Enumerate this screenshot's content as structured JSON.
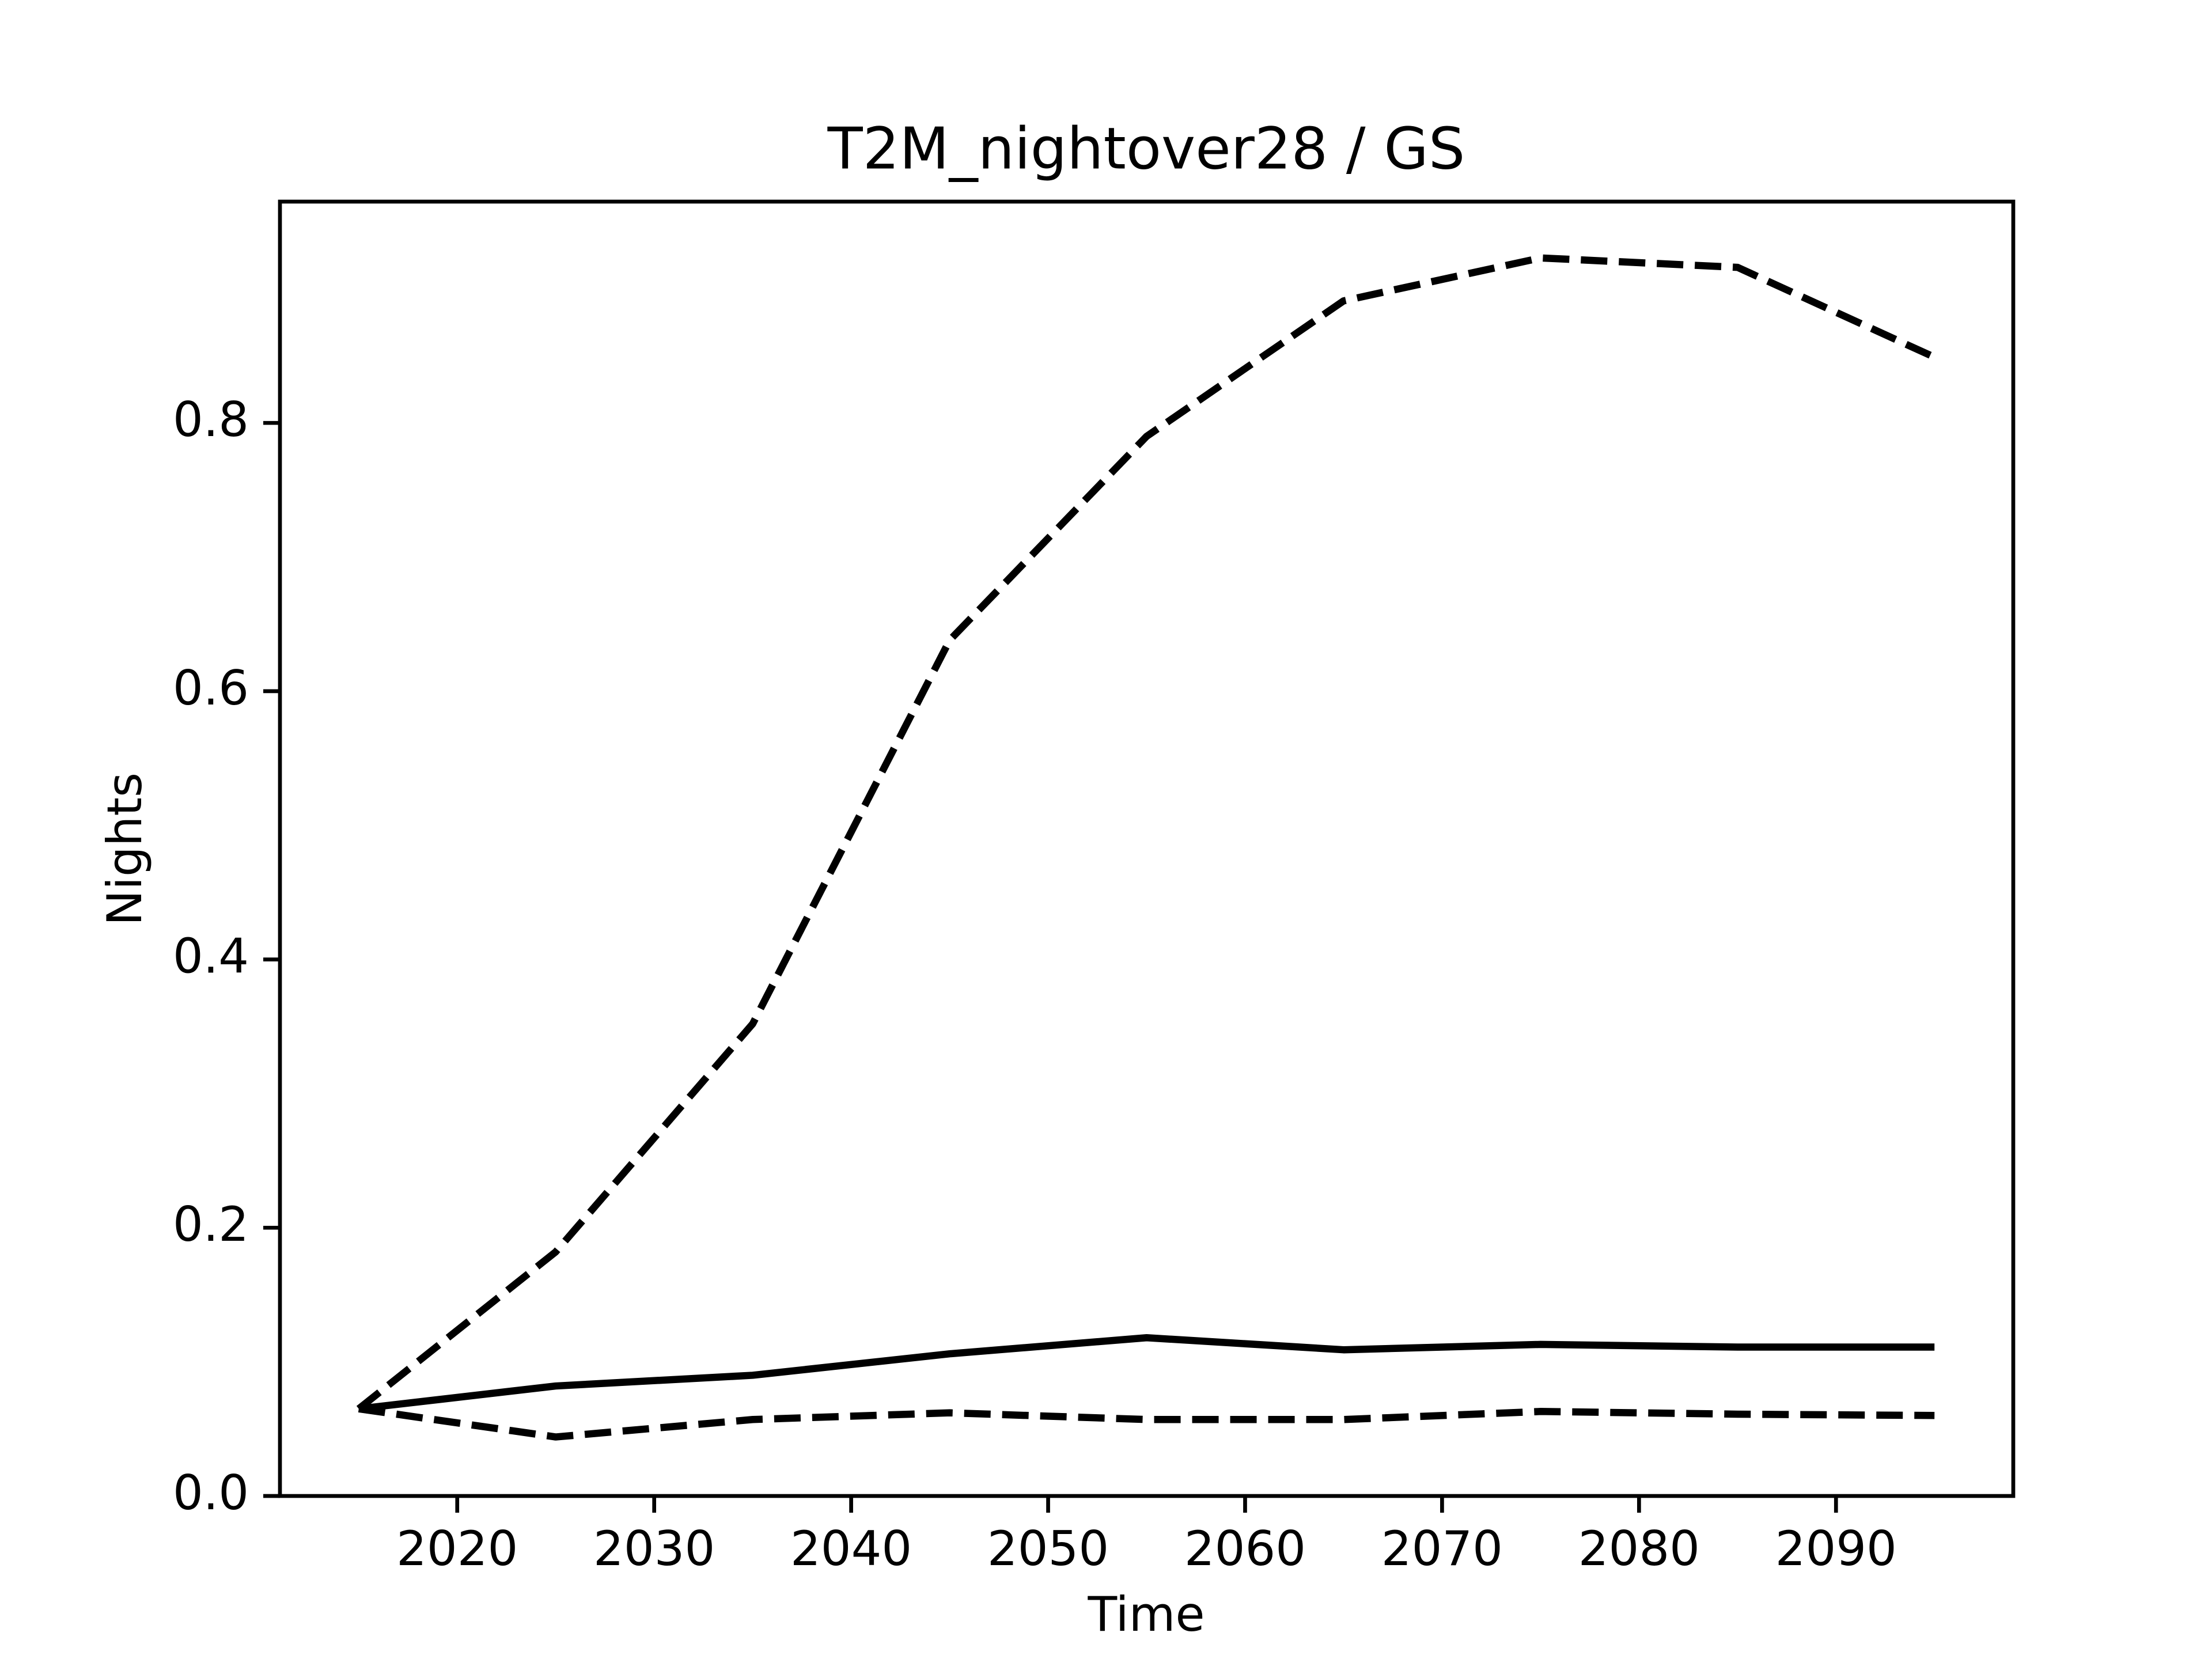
{
  "chart_data": {
    "type": "line",
    "title": "T2M_nightover28 / GS",
    "xlabel": "Time",
    "ylabel": "Nights",
    "x": [
      2015,
      2025,
      2035,
      2045,
      2055,
      2065,
      2075,
      2085,
      2095
    ],
    "series": [
      {
        "color": "#000000",
        "dashed": true,
        "values": [
          0.065,
          0.182,
          0.352,
          0.638,
          0.79,
          0.891,
          0.923,
          0.916,
          0.849
        ]
      },
      {
        "color": "#000000",
        "dashed": false,
        "values": [
          0.065,
          0.082,
          0.09,
          0.106,
          0.118,
          0.109,
          0.113,
          0.111,
          0.111
        ]
      },
      {
        "color": "#000000",
        "dashed": true,
        "values": [
          0.065,
          0.044,
          0.057,
          0.062,
          0.057,
          0.057,
          0.063,
          0.061,
          0.06
        ]
      }
    ],
    "xlim": [
      2011,
      2099
    ],
    "xticks": [
      2020,
      2030,
      2040,
      2050,
      2060,
      2070,
      2080,
      2090
    ],
    "ylim": [
      0,
      0.965
    ],
    "yticks": [
      {
        "value": 0,
        "label": "0.0"
      },
      0.2,
      0.4,
      0.6,
      0.8
    ],
    "grid": false
  }
}
